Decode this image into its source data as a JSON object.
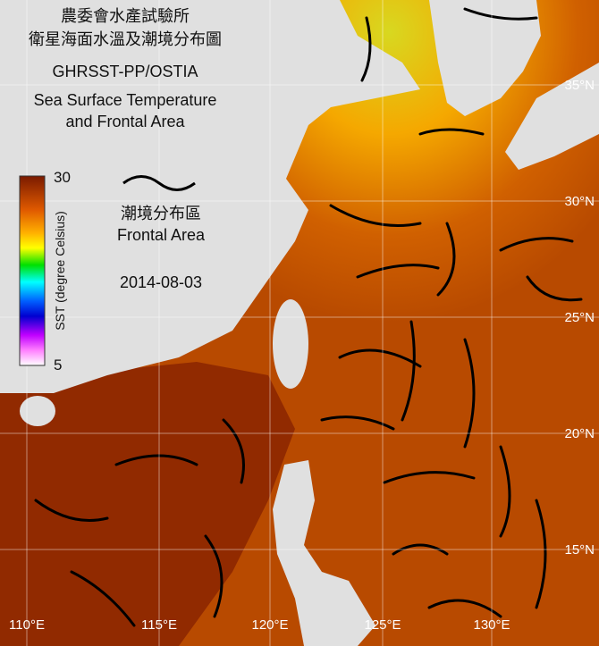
{
  "title": {
    "lines": [
      "農委會水產試驗所",
      "衛星海面水溫及潮境分布圖",
      "GHRSST-PP/OSTIA",
      "Sea Surface Temperature",
      "and Frontal Area"
    ]
  },
  "colorbar": {
    "max": 30,
    "min": 5,
    "label": "SST (degree Celsius)"
  },
  "legend": {
    "label_zh": "潮境分布區",
    "label_en": "Frontal Area"
  },
  "date": "2014-08-03",
  "longitude_labels": [
    "110°E",
    "115°E",
    "120°E",
    "125°E",
    "130°E"
  ],
  "latitude_labels": [
    "35°N",
    "30°N",
    "25°N",
    "20°N",
    "15°N"
  ]
}
